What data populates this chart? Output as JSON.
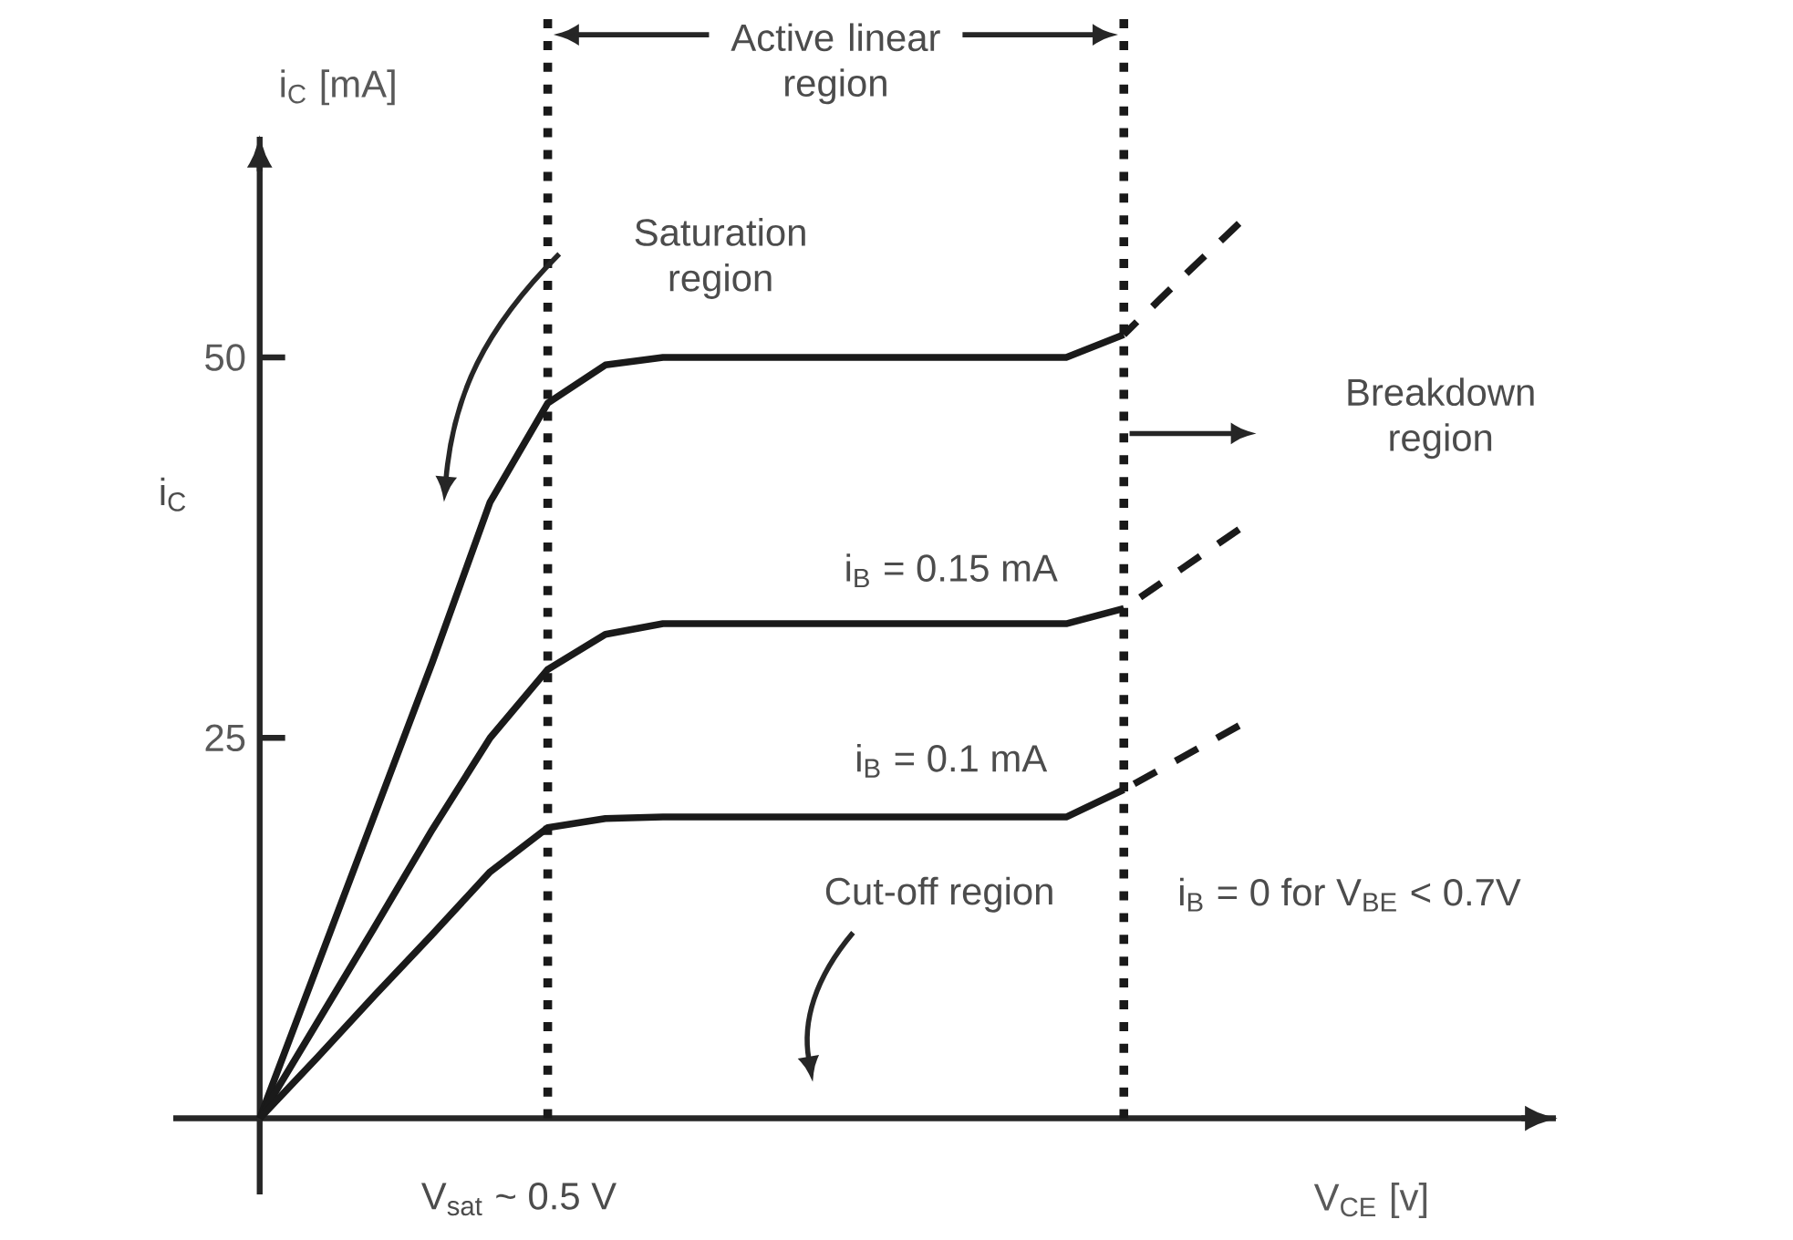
{
  "chart_data": {
    "type": "line",
    "xlabel": "V$_{CE}$ [v]",
    "ylabel": "i$_{C}$ [mA]",
    "categories": [
      null,
      null,
      null,
      null,
      null,
      null,
      null,
      null,
      null,
      null,
      null,
      null,
      null,
      null,
      null,
      null,
      null,
      null,
      null,
      null,
      null,
      null,
      null,
      null
    ],
    "ylim": [
      -5,
      64.5
    ],
    "yticks": [
      {
        "value": 25,
        "label": "25"
      },
      {
        "value": 50,
        "label": "50"
      }
    ],
    "marker": "none",
    "series": [
      {
        "color": "#1a1a1a",
        "values": [
          null,
          0,
          10,
          20,
          30,
          40.5,
          47,
          49.5,
          50,
          50,
          50,
          50,
          50,
          50,
          50,
          50,
          51.5,
          null,
          null,
          null,
          null,
          null,
          null,
          null
        ]
      },
      {
        "color": "#1a1a1a",
        "line_style": "dashed",
        "values": [
          null,
          null,
          null,
          null,
          null,
          null,
          null,
          null,
          null,
          null,
          null,
          null,
          null,
          null,
          null,
          null,
          51.5,
          55.2,
          58.8,
          null,
          null,
          null,
          null,
          null
        ]
      },
      {
        "color": "#1a1a1a",
        "values": [
          null,
          0,
          6.3,
          12.6,
          19,
          25,
          29.5,
          31.8,
          32.5,
          32.5,
          32.5,
          32.5,
          32.5,
          32.5,
          32.5,
          32.5,
          33.5,
          null,
          null,
          null,
          null,
          null,
          null,
          null
        ]
      },
      {
        "color": "#1a1a1a",
        "line_style": "dashed",
        "values": [
          null,
          null,
          null,
          null,
          null,
          null,
          null,
          null,
          null,
          null,
          null,
          null,
          null,
          null,
          null,
          null,
          33.5,
          36.1,
          38.7,
          null,
          null,
          null,
          null,
          null
        ]
      },
      {
        "color": "#1a1a1a",
        "values": [
          null,
          0,
          4,
          8.1,
          12.1,
          16.2,
          19.1,
          19.7,
          19.8,
          19.8,
          19.8,
          19.8,
          19.8,
          19.8,
          19.8,
          19.8,
          21.6,
          null,
          null,
          null,
          null,
          null,
          null,
          null
        ]
      },
      {
        "color": "#1a1a1a",
        "line_style": "dashed",
        "values": [
          null,
          null,
          null,
          null,
          null,
          null,
          null,
          null,
          null,
          null,
          null,
          null,
          null,
          null,
          null,
          null,
          21.6,
          23.7,
          25.8,
          null,
          null,
          null,
          null,
          null
        ]
      }
    ],
    "annotations": [
      "Active linear region",
      "Saturation region",
      "Breakdown region",
      "Cut-off region",
      "i$_{B}$ = 0   for V$_{BE}$ < 0.7V",
      "i$_{C}$",
      "i$_{B}$ = 0.15 mA",
      "i$_{B}$ = 0.1 mA",
      "V$_{sat}$ ~ 0.5 V"
    ]
  }
}
